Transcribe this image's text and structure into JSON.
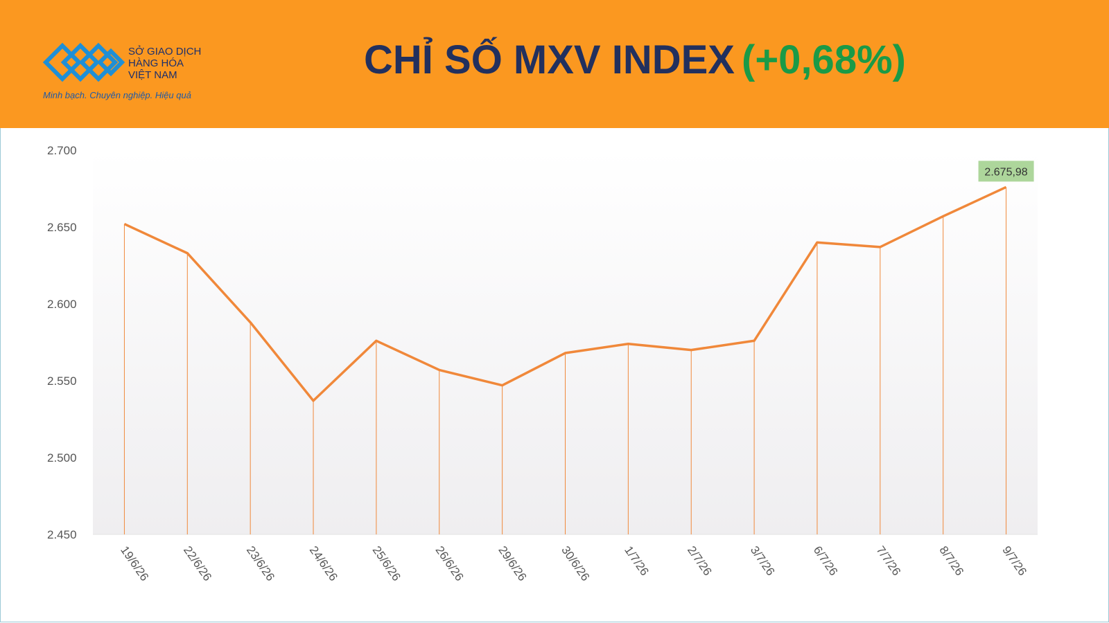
{
  "header": {
    "org_lines": [
      "SỞ GIAO DỊCH",
      "HÀNG HÓA",
      "VIỆT NAM"
    ],
    "slogan": "Minh bạch. Chuyên nghiệp. Hiệu quả",
    "title": "CHỈ SỐ MXV INDEX",
    "change": "(+0,68%)"
  },
  "chart_data": {
    "type": "line",
    "categories": [
      "19/6/26",
      "22/6/26",
      "23/6/26",
      "24/6/26",
      "25/6/26",
      "26/6/26",
      "29/6/26",
      "30/6/26",
      "1/7/26",
      "2/7/26",
      "3/7/26",
      "6/7/26",
      "7/7/26",
      "8/7/26",
      "9/7/26"
    ],
    "values": [
      2652,
      2633,
      2588,
      2537,
      2576,
      2557,
      2547,
      2568,
      2574,
      2570,
      2576,
      2640,
      2637,
      2657,
      2675.98
    ],
    "value_labels": [
      null,
      null,
      null,
      null,
      null,
      null,
      null,
      null,
      null,
      null,
      null,
      null,
      null,
      null,
      "2.675,98"
    ],
    "color": "#f0883a",
    "ylim": [
      2450,
      2700
    ],
    "yticks": [
      {
        "value": 2450,
        "label": "2.450"
      },
      {
        "value": 2500,
        "label": "2.500"
      },
      {
        "value": 2550,
        "label": "2.550"
      },
      {
        "value": 2600,
        "label": "2.600"
      },
      {
        "value": 2650,
        "label": "2.650"
      },
      {
        "value": 2700,
        "label": "2.700"
      }
    ]
  }
}
